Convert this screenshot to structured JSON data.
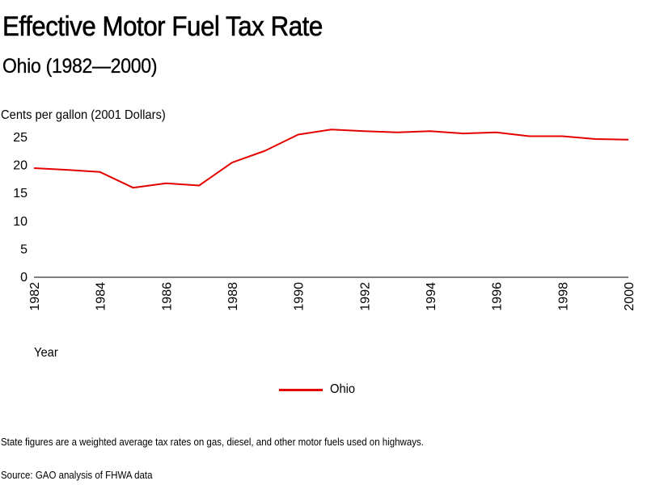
{
  "title": "Effective Motor Fuel Tax Rate",
  "subtitle": "Ohio (1982—2000)",
  "ylabel": "Cents per gallon (2001 Dollars)",
  "xlabel": "Year",
  "note": "State figures are a weighted average tax rates on gas, diesel, and other motor fuels used on highways.",
  "source": "Source: GAO analysis of FHWA data",
  "chart_data": {
    "type": "line",
    "title": "Effective Motor Fuel Tax Rate",
    "subtitle": "Ohio (1982—2000)",
    "xlabel": "Year",
    "ylabel": "Cents per gallon (2001 Dollars)",
    "x": [
      1982,
      1983,
      1984,
      1985,
      1986,
      1987,
      1988,
      1989,
      1990,
      1991,
      1992,
      1993,
      1994,
      1995,
      1996,
      1997,
      1998,
      1999,
      2000
    ],
    "series": [
      {
        "name": "Ohio",
        "color": "#e50000",
        "values": [
          19.5,
          19.2,
          18.8,
          16.0,
          16.8,
          16.4,
          20.5,
          22.6,
          25.5,
          26.4,
          26.1,
          25.9,
          26.1,
          25.7,
          25.9,
          25.2,
          25.2,
          24.7,
          24.6
        ]
      }
    ],
    "ylim": [
      0,
      26
    ],
    "xlim": [
      1982,
      2000
    ],
    "yticks": [
      "0",
      "5",
      "10",
      "15",
      "20",
      "25"
    ],
    "xticks": [
      "1982",
      "1984",
      "1986",
      "1988",
      "1990",
      "1992",
      "1994",
      "1996",
      "1998",
      "2000"
    ],
    "grid": false,
    "legend": "bottom-center"
  }
}
